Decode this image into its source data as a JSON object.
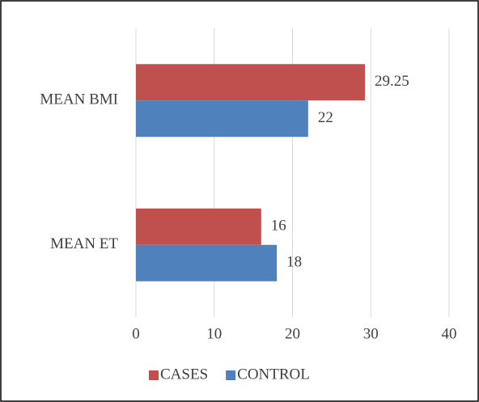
{
  "chart_data": {
    "type": "hbar",
    "categories": [
      "MEAN BMI",
      "MEAN ET"
    ],
    "series": [
      {
        "name": "CASES",
        "color": "#c0504d",
        "values": [
          29.25,
          16
        ]
      },
      {
        "name": "CONTROL",
        "color": "#4f81bd",
        "values": [
          22,
          18
        ]
      }
    ],
    "xlim": [
      0,
      40
    ],
    "xticks": [
      0,
      10,
      20,
      30,
      40
    ],
    "grid": true,
    "legend": "bottom",
    "data_labels": true
  }
}
